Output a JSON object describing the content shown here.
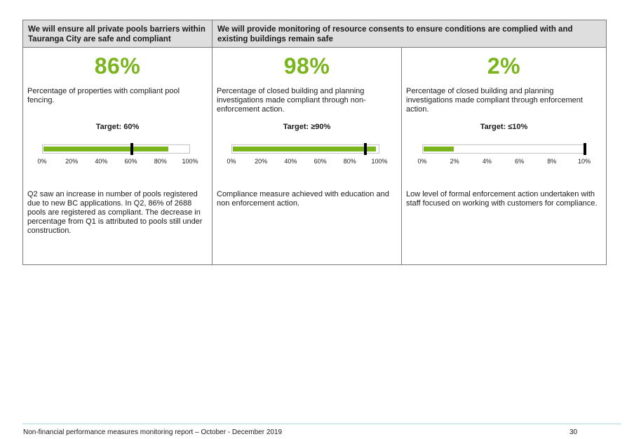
{
  "header": {
    "col1": "We will ensure all private pools barriers within Tauranga City are safe and compliant",
    "col2": "We will provide monitoring of resource consents to ensure conditions are complied with and existing buildings remain safe"
  },
  "measures": [
    {
      "big_value": "86%",
      "description": "Percentage of properties with compliant pool fencing.",
      "target_label": "Target: 60%",
      "actual": 86,
      "target": 60,
      "scale_max": 100,
      "ticks": [
        "0%",
        "20%",
        "40%",
        "60%",
        "80%",
        "100%"
      ],
      "comment": "Q2 saw an increase in number of pools registered due to new BC applications. In Q2, 86% of 2688 pools are registered as compliant. The decrease in percentage from Q1 is attributed to pools still under construction."
    },
    {
      "big_value": "98%",
      "description": "Percentage of closed building and planning investigations made compliant through non-enforcement action.",
      "target_label": "Target: ≥90%",
      "actual": 98,
      "target": 90,
      "scale_max": 100,
      "ticks": [
        "0%",
        "20%",
        "40%",
        "60%",
        "80%",
        "100%"
      ],
      "comment": "Compliance measure achieved with education and non enforcement action."
    },
    {
      "big_value": "2%",
      "description": "Percentage of closed building and planning investigations made compliant through enforcement action.",
      "target_label": "Target: ≤10%",
      "actual": 2,
      "target": 10,
      "scale_max": 10,
      "ticks": [
        "0%",
        "2%",
        "4%",
        "6%",
        "8%",
        "10%"
      ],
      "comment": "Low level of formal enforcement action undertaken with staff focused on working with customers for compliance."
    }
  ],
  "colors": {
    "accent": "#7ab51d",
    "header_bg": "#dedede",
    "marker": "#000000"
  },
  "footer": {
    "text": "Non-financial performance measures monitoring report – October - December 2019",
    "page": "30"
  }
}
